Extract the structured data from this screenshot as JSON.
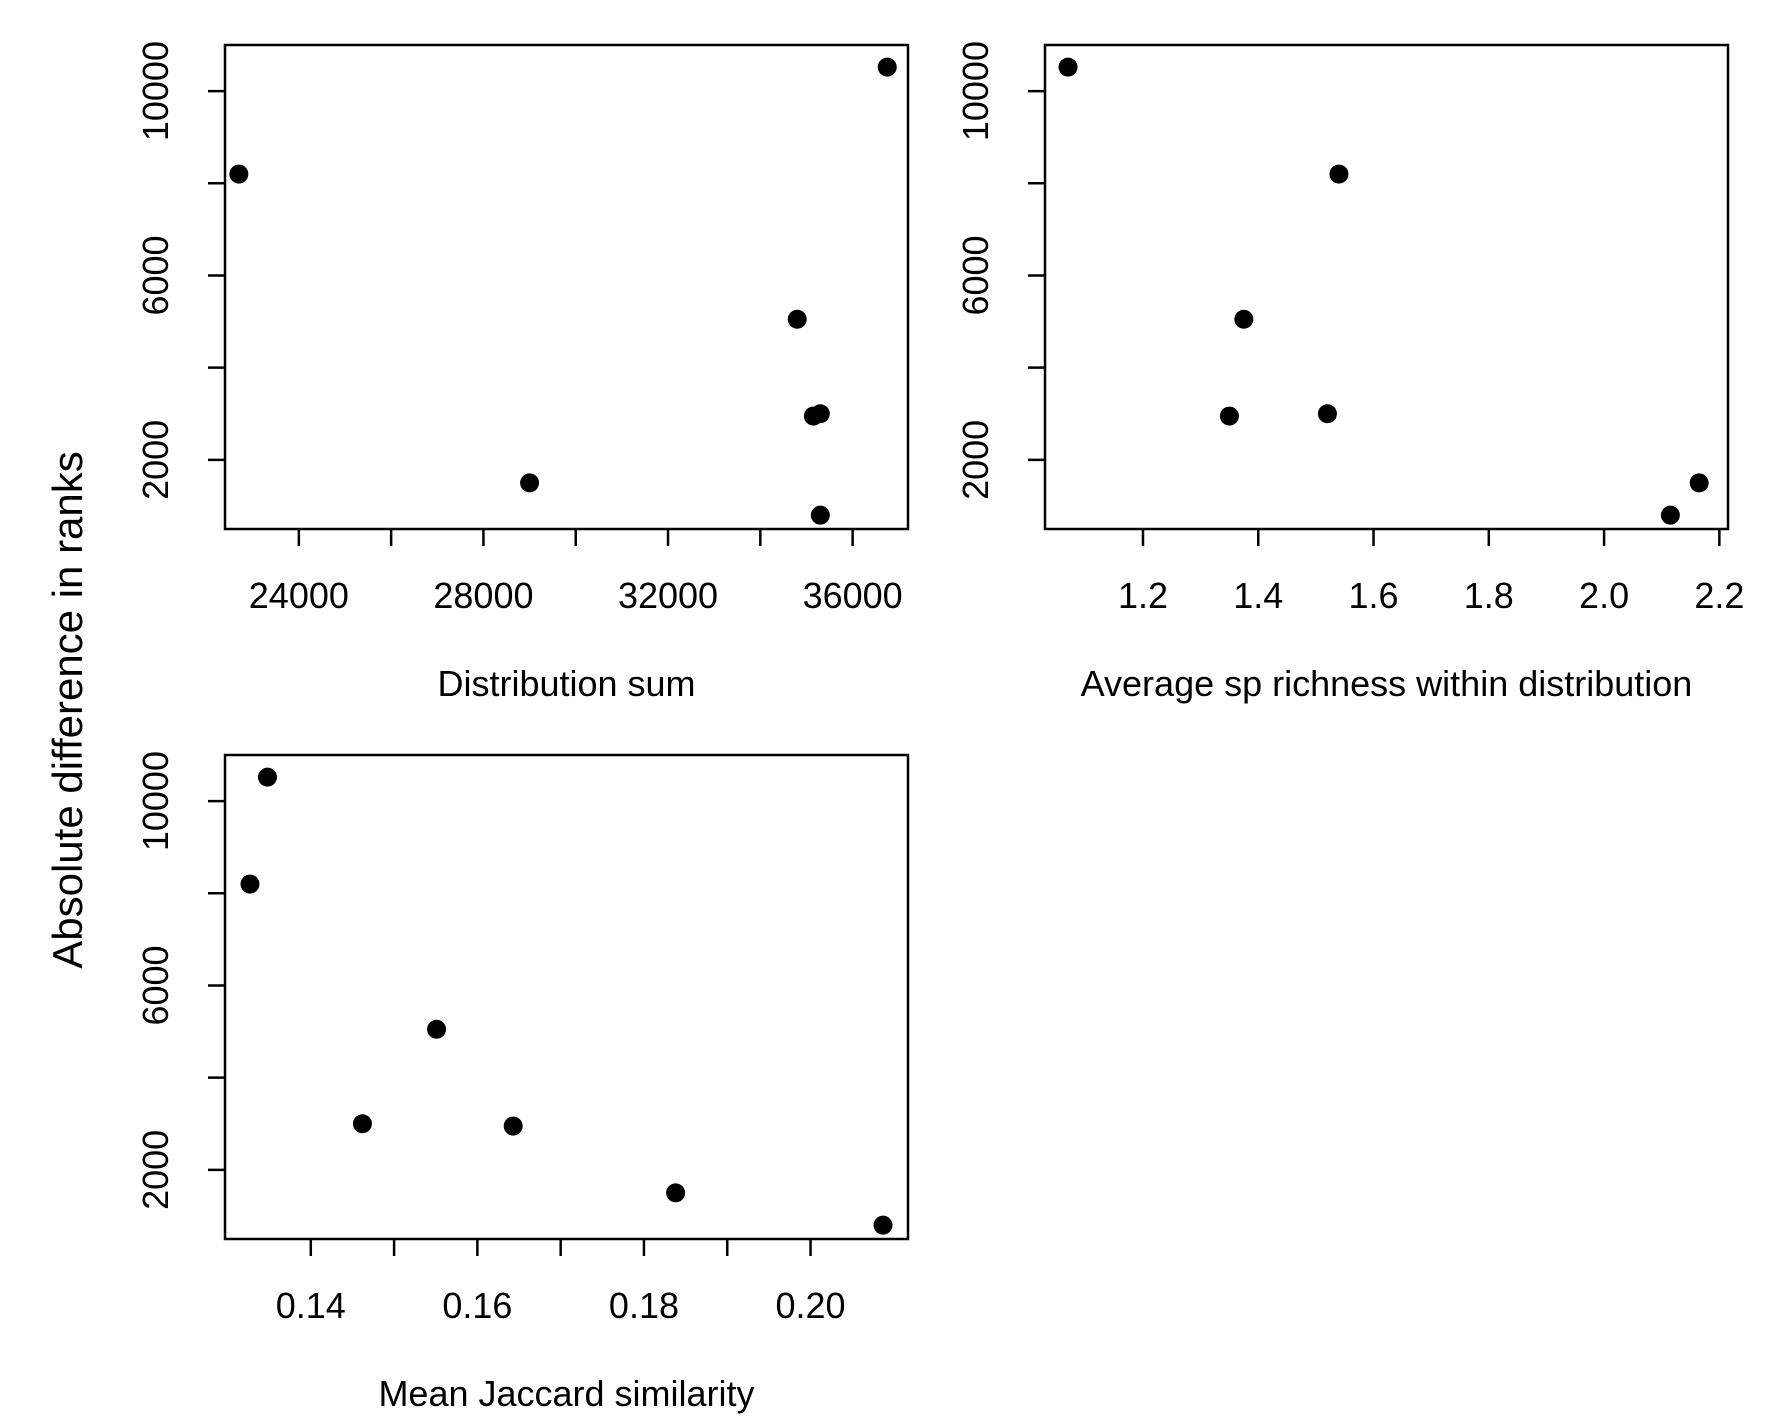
{
  "figure": {
    "ylabel": "Absolute difference in ranks"
  },
  "chart_data": [
    {
      "type": "scatter",
      "title": "",
      "xlabel": "Distribution sum",
      "ylabel": "",
      "xlim": [
        22400,
        37200
      ],
      "ylim": [
        500,
        11000
      ],
      "xticks": [
        24000,
        26000,
        28000,
        30000,
        32000,
        34000,
        36000
      ],
      "xtick_labels": [
        "24000",
        "",
        "28000",
        "",
        "32000",
        "",
        "36000"
      ],
      "yticks": [
        2000,
        4000,
        6000,
        8000,
        10000
      ],
      "ytick_labels": [
        "2000",
        "",
        "6000",
        "",
        "10000"
      ],
      "grid": false,
      "points": [
        {
          "x": 22700,
          "y": 8200
        },
        {
          "x": 29000,
          "y": 1500
        },
        {
          "x": 34800,
          "y": 5050
        },
        {
          "x": 35150,
          "y": 2950
        },
        {
          "x": 35300,
          "y": 3000
        },
        {
          "x": 35300,
          "y": 800
        },
        {
          "x": 36750,
          "y": 10520
        }
      ]
    },
    {
      "type": "scatter",
      "title": "",
      "xlabel": "Average sp richness within distribution",
      "ylabel": "",
      "xlim": [
        1.03,
        2.215
      ],
      "ylim": [
        500,
        11000
      ],
      "xticks": [
        1.2,
        1.4,
        1.6,
        1.8,
        2.0,
        2.2
      ],
      "xtick_labels": [
        "1.2",
        "1.4",
        "1.6",
        "1.8",
        "2.0",
        "2.2"
      ],
      "yticks": [
        2000,
        4000,
        6000,
        8000,
        10000
      ],
      "ytick_labels": [
        "2000",
        "",
        "6000",
        "",
        "10000"
      ],
      "grid": false,
      "points": [
        {
          "x": 1.07,
          "y": 10520
        },
        {
          "x": 1.54,
          "y": 8200
        },
        {
          "x": 1.375,
          "y": 5050
        },
        {
          "x": 1.35,
          "y": 2950
        },
        {
          "x": 1.52,
          "y": 3000
        },
        {
          "x": 2.115,
          "y": 800
        },
        {
          "x": 2.165,
          "y": 1500
        }
      ]
    },
    {
      "type": "scatter",
      "title": "",
      "xlabel": "Mean Jaccard similarity",
      "ylabel": "",
      "xlim": [
        0.1297,
        0.2117
      ],
      "ylim": [
        500,
        11000
      ],
      "xticks": [
        0.14,
        0.15,
        0.16,
        0.17,
        0.18,
        0.19,
        0.2
      ],
      "xtick_labels": [
        "0.14",
        "",
        "0.16",
        "",
        "0.18",
        "",
        "0.20"
      ],
      "yticks": [
        2000,
        4000,
        6000,
        8000,
        10000
      ],
      "ytick_labels": [
        "2000",
        "",
        "6000",
        "",
        "10000"
      ],
      "grid": false,
      "points": [
        {
          "x": 0.1327,
          "y": 8200
        },
        {
          "x": 0.1348,
          "y": 10520
        },
        {
          "x": 0.1462,
          "y": 3000
        },
        {
          "x": 0.1551,
          "y": 5050
        },
        {
          "x": 0.1643,
          "y": 2950
        },
        {
          "x": 0.1838,
          "y": 1500
        },
        {
          "x": 0.2087,
          "y": 800
        }
      ]
    }
  ]
}
